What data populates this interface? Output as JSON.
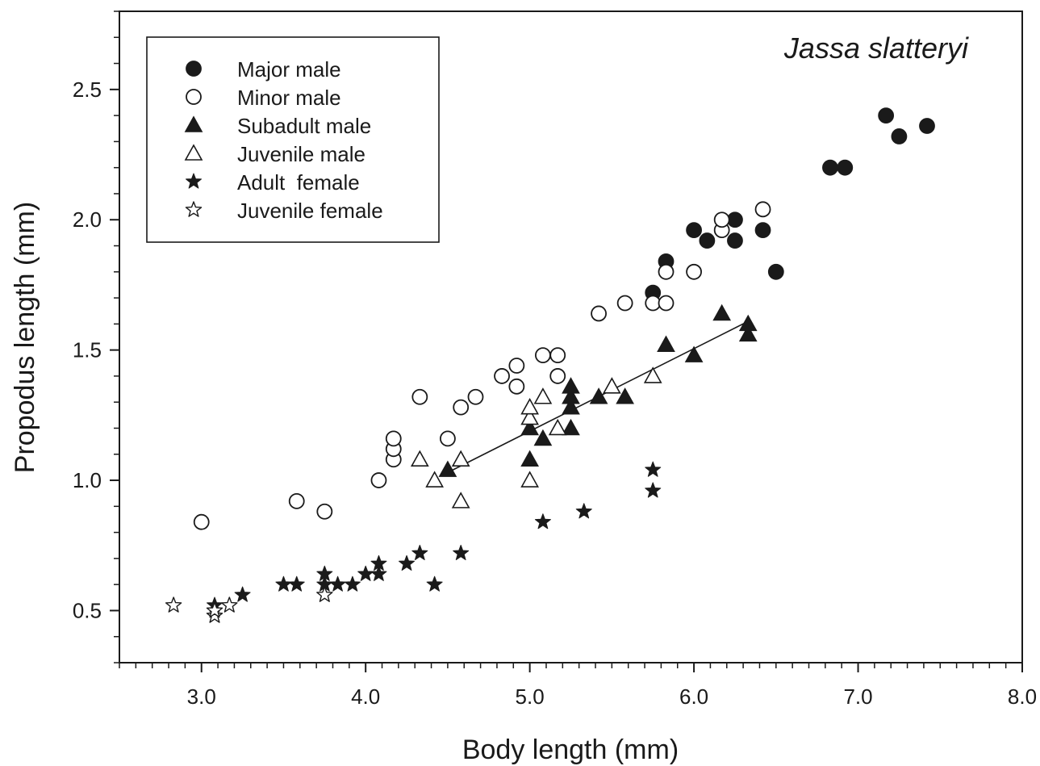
{
  "chart_data": {
    "type": "scatter",
    "title": "Jassa slatteryi",
    "xlabel": "Body length (mm)",
    "ylabel": "Propodus length (mm)",
    "xlim": [
      2.5,
      8.0
    ],
    "ylim": [
      0.3,
      2.8
    ],
    "x_ticks": [
      "3.0",
      "4.0",
      "5.0",
      "6.0",
      "7.0",
      "8.0"
    ],
    "y_ticks": [
      "0.5",
      "1.0",
      "1.5",
      "2.0",
      "2.5"
    ],
    "grid": false,
    "legend_position": "top-left",
    "series": [
      {
        "name": "Major male",
        "marker": "circle-filled",
        "points": [
          [
            5.75,
            1.72
          ],
          [
            5.83,
            1.84
          ],
          [
            6.0,
            1.96
          ],
          [
            6.08,
            1.92
          ],
          [
            6.25,
            2.0
          ],
          [
            6.25,
            1.92
          ],
          [
            6.42,
            1.96
          ],
          [
            6.5,
            1.8
          ],
          [
            6.83,
            2.2
          ],
          [
            6.92,
            2.2
          ],
          [
            7.17,
            2.4
          ],
          [
            7.25,
            2.32
          ],
          [
            7.42,
            2.36
          ]
        ]
      },
      {
        "name": "Minor male",
        "marker": "circle-open",
        "points": [
          [
            3.0,
            0.84
          ],
          [
            3.58,
            0.92
          ],
          [
            3.75,
            0.88
          ],
          [
            4.08,
            1.0
          ],
          [
            4.17,
            1.08
          ],
          [
            4.17,
            1.12
          ],
          [
            4.17,
            1.16
          ],
          [
            4.33,
            1.32
          ],
          [
            4.5,
            1.16
          ],
          [
            4.58,
            1.28
          ],
          [
            4.67,
            1.32
          ],
          [
            4.83,
            1.4
          ],
          [
            4.92,
            1.36
          ],
          [
            4.92,
            1.44
          ],
          [
            5.08,
            1.48
          ],
          [
            5.17,
            1.48
          ],
          [
            5.17,
            1.4
          ],
          [
            5.42,
            1.64
          ],
          [
            5.58,
            1.68
          ],
          [
            5.75,
            1.68
          ],
          [
            5.83,
            1.68
          ],
          [
            5.83,
            1.8
          ],
          [
            6.0,
            1.8
          ],
          [
            6.17,
            1.96
          ],
          [
            6.17,
            2.0
          ],
          [
            6.42,
            2.04
          ]
        ]
      },
      {
        "name": "Subadult male",
        "marker": "triangle-filled",
        "points": [
          [
            4.5,
            1.04
          ],
          [
            5.0,
            1.08
          ],
          [
            5.0,
            1.2
          ],
          [
            5.08,
            1.16
          ],
          [
            5.25,
            1.2
          ],
          [
            5.25,
            1.28
          ],
          [
            5.25,
            1.32
          ],
          [
            5.25,
            1.36
          ],
          [
            5.42,
            1.32
          ],
          [
            5.58,
            1.32
          ],
          [
            5.83,
            1.52
          ],
          [
            6.0,
            1.48
          ],
          [
            6.17,
            1.64
          ],
          [
            6.33,
            1.6
          ],
          [
            6.33,
            1.56
          ]
        ]
      },
      {
        "name": "Juvenile male",
        "marker": "triangle-open",
        "points": [
          [
            4.33,
            1.08
          ],
          [
            4.42,
            1.0
          ],
          [
            4.58,
            0.92
          ],
          [
            4.58,
            1.08
          ],
          [
            5.0,
            1.0
          ],
          [
            5.0,
            1.24
          ],
          [
            5.0,
            1.28
          ],
          [
            5.08,
            1.32
          ],
          [
            5.17,
            1.2
          ],
          [
            5.5,
            1.36
          ],
          [
            5.75,
            1.4
          ]
        ]
      },
      {
        "name": "Adult  female",
        "marker": "star-filled",
        "points": [
          [
            3.08,
            0.52
          ],
          [
            3.25,
            0.56
          ],
          [
            3.5,
            0.6
          ],
          [
            3.58,
            0.6
          ],
          [
            3.75,
            0.6
          ],
          [
            3.75,
            0.64
          ],
          [
            3.83,
            0.6
          ],
          [
            3.92,
            0.6
          ],
          [
            4.0,
            0.64
          ],
          [
            4.08,
            0.64
          ],
          [
            4.08,
            0.68
          ],
          [
            4.25,
            0.68
          ],
          [
            4.33,
            0.72
          ],
          [
            4.42,
            0.6
          ],
          [
            4.58,
            0.72
          ],
          [
            5.08,
            0.84
          ],
          [
            5.33,
            0.88
          ],
          [
            5.75,
            0.96
          ],
          [
            5.75,
            1.04
          ]
        ]
      },
      {
        "name": "Juvenile female",
        "marker": "star-open",
        "points": [
          [
            2.83,
            0.52
          ],
          [
            3.08,
            0.48
          ],
          [
            3.08,
            0.5
          ],
          [
            3.17,
            0.52
          ],
          [
            3.75,
            0.56
          ]
        ]
      }
    ],
    "trendline": {
      "series": "Subadult male",
      "from": [
        4.5,
        1.03
      ],
      "to": [
        6.33,
        1.61
      ]
    }
  }
}
